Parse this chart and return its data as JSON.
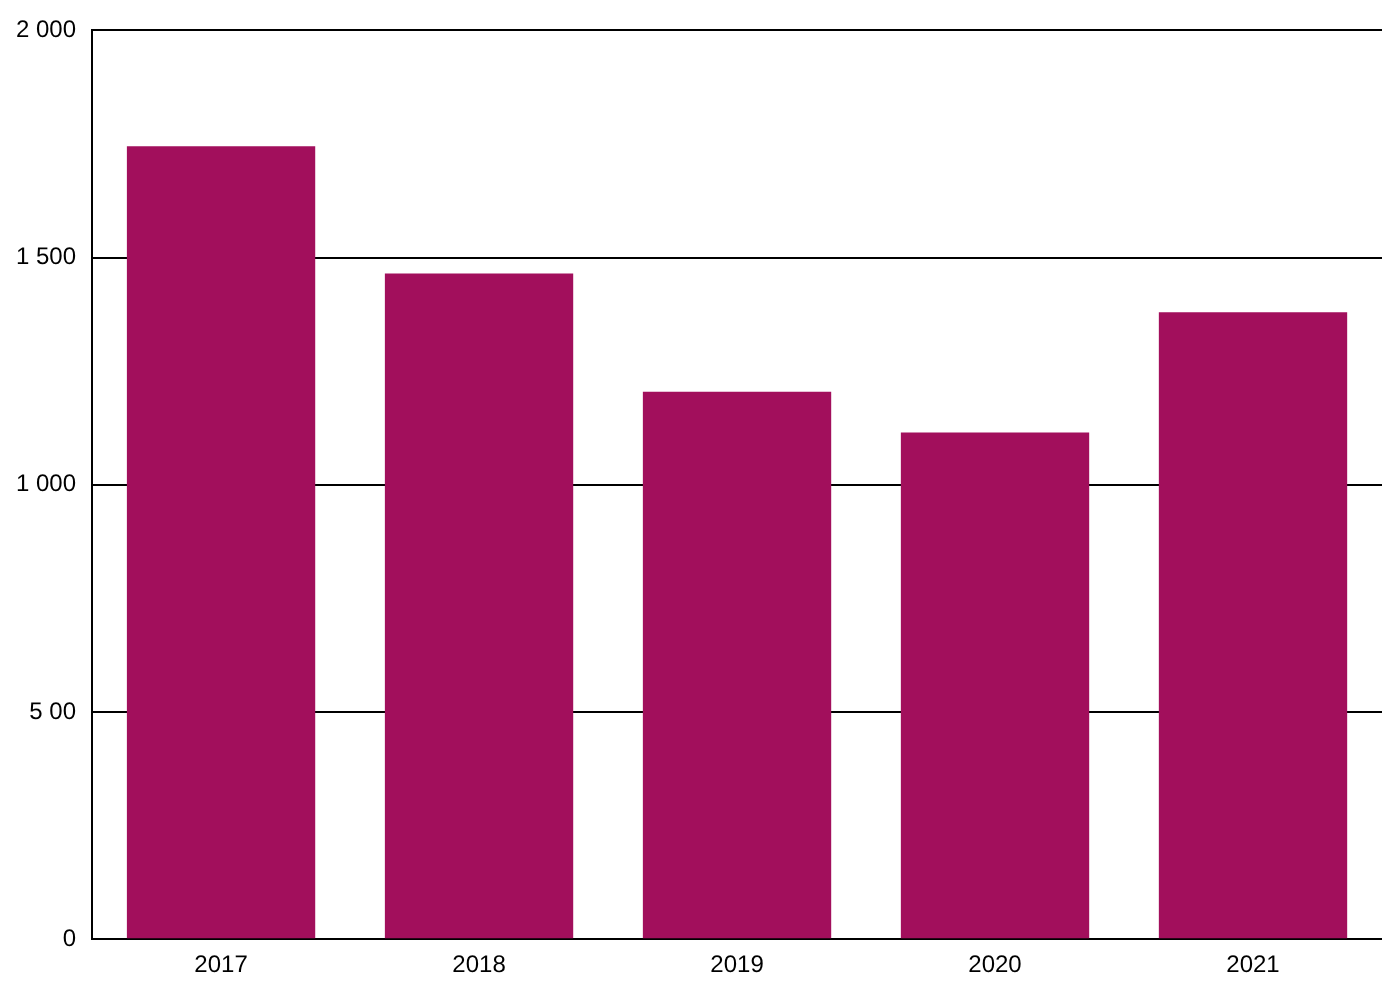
{
  "chart_data": {
    "type": "bar",
    "categories": [
      "2017",
      "2018",
      "2019",
      "2020",
      "2021"
    ],
    "values": [
      1745,
      1465,
      1205,
      1115,
      1380
    ],
    "color": "#a20f5c",
    "ylim": [
      0,
      2000
    ],
    "yticks": [
      0,
      {
        "value": 500,
        "label": "5 00"
      },
      {
        "value": 1000,
        "label": "1 000"
      },
      {
        "value": 1500,
        "label": "1 500"
      },
      {
        "value": 2000,
        "label": "2 000"
      }
    ],
    "grid": "y"
  }
}
